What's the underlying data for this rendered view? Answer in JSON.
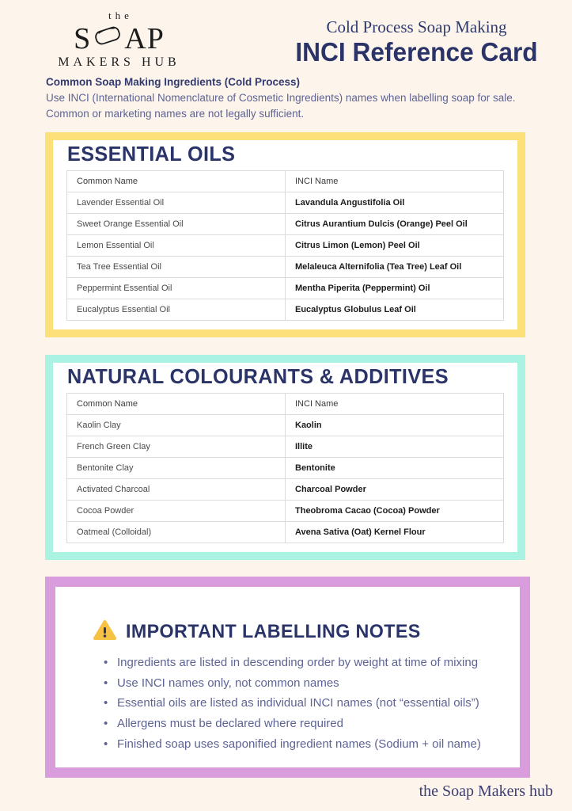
{
  "header": {
    "logo": {
      "line1": "the",
      "word_start": "S",
      "word_end": "AP",
      "line3": "MAKERS HUB"
    },
    "subtitle": "Cold Process Soap Making",
    "title": "INCI Reference Card"
  },
  "intro": {
    "heading": "Common Soap Making Ingredients (Cold Process)",
    "body": "Use INCI (International Nomenclature of Cosmetic Ingredients) names when labelling soap for sale. Common or marketing names are not legally sufficient."
  },
  "sections": [
    {
      "title": "ESSENTIAL OILS",
      "accent": "#FCE07A",
      "columns": [
        "Common Name",
        "INCI Name"
      ],
      "rows": [
        [
          "Lavender Essential Oil",
          "Lavandula Angustifolia Oil"
        ],
        [
          "Sweet Orange Essential Oil",
          "Citrus Aurantium Dulcis (Orange) Peel Oil"
        ],
        [
          "Lemon Essential Oil",
          "Citrus Limon (Lemon) Peel Oil"
        ],
        [
          "Tea Tree Essential Oil",
          "Melaleuca Alternifolia (Tea Tree) Leaf Oil"
        ],
        [
          "Peppermint Essential Oil",
          "Mentha Piperita (Peppermint) Oil"
        ],
        [
          "Eucalyptus Essential Oil",
          "Eucalyptus Globulus Leaf Oil"
        ]
      ]
    },
    {
      "title": "NATURAL COLOURANTS & ADDITIVES",
      "accent": "#AAF2E2",
      "columns": [
        "Common Name",
        "INCI Name"
      ],
      "rows": [
        [
          "Kaolin Clay",
          "Kaolin"
        ],
        [
          "French Green Clay",
          "Illite"
        ],
        [
          "Bentonite Clay",
          "Bentonite"
        ],
        [
          "Activated Charcoal",
          "Charcoal Powder"
        ],
        [
          "Cocoa Powder",
          "Theobroma Cacao (Cocoa) Powder"
        ],
        [
          "Oatmeal (Colloidal)",
          "Avena Sativa (Oat) Kernel Flour"
        ]
      ]
    }
  ],
  "notes": {
    "title": "IMPORTANT LABELLING NOTES",
    "accent": "#D99CDC",
    "warning_color": "#F6C244",
    "items": [
      "Ingredients are listed in descending order by weight at time of mixing",
      "Use INCI names only, not common names",
      "Essential oils are listed as individual INCI names (not “essential oils”)",
      "Allergens must be declared where required",
      "Finished soap uses saponified ingredient names (Sodium + oil name)"
    ]
  },
  "footer": {
    "text": "the Soap Makers hub"
  },
  "colors": {
    "background": "#FDF5EC",
    "heading_navy": "#2B3468",
    "body_text": "#5D6394"
  }
}
